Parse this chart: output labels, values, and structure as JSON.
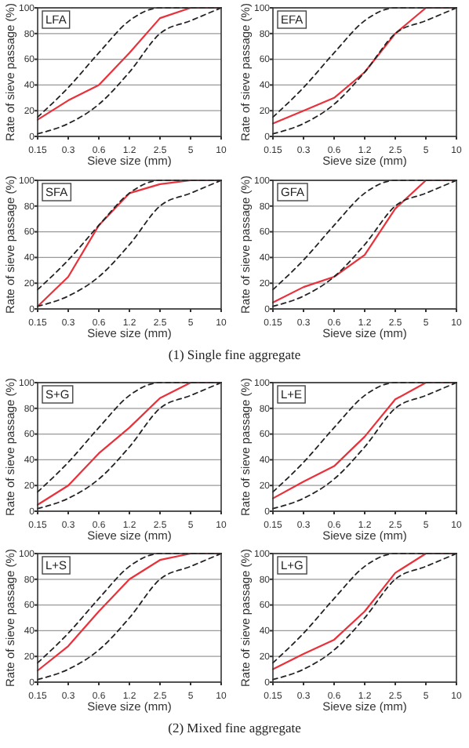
{
  "chart_data": [
    {
      "type": "line",
      "title": "LFA",
      "categories": [
        "0.15",
        "0.3",
        "0.6",
        "1.2",
        "2.5",
        "5",
        "10"
      ],
      "xlabel": "Sieve size (mm)",
      "ylabel": "Rate of sieve passage (%)",
      "ylim": [
        0,
        100
      ],
      "yticks": [
        0,
        20,
        40,
        60,
        80,
        100
      ],
      "grid": "y",
      "series": [
        {
          "color": "#e8313a",
          "line_style": "solid",
          "values": [
            13,
            28,
            40,
            65,
            92,
            100,
            100
          ]
        },
        {
          "color": "#222222",
          "line_style": "dashed",
          "values": [
            15,
            38,
            65,
            90,
            100,
            100,
            100
          ]
        },
        {
          "color": "#222222",
          "line_style": "dashed",
          "values": [
            2,
            10,
            25,
            50,
            80,
            90,
            100
          ]
        }
      ]
    },
    {
      "type": "line",
      "title": "EFA",
      "categories": [
        "0.15",
        "0.3",
        "0.6",
        "1.2",
        "2.5",
        "5",
        "10"
      ],
      "xlabel": "Sieve size (mm)",
      "ylabel": "Rate of sieve passage (%)",
      "ylim": [
        0,
        100
      ],
      "yticks": [
        0,
        20,
        40,
        60,
        80,
        100
      ],
      "grid": "y",
      "series": [
        {
          "color": "#e8313a",
          "line_style": "solid",
          "values": [
            10,
            20,
            30,
            50,
            80,
            100,
            100
          ]
        },
        {
          "color": "#222222",
          "line_style": "dashed",
          "values": [
            15,
            38,
            65,
            90,
            100,
            100,
            100
          ]
        },
        {
          "color": "#222222",
          "line_style": "dashed",
          "values": [
            2,
            10,
            25,
            50,
            80,
            90,
            100
          ]
        }
      ]
    },
    {
      "type": "line",
      "title": "SFA",
      "categories": [
        "0.15",
        "0.3",
        "0.6",
        "1.2",
        "2.5",
        "5",
        "10"
      ],
      "xlabel": "Sieve size (mm)",
      "ylabel": "Rate of sieve passage (%)",
      "ylim": [
        0,
        100
      ],
      "yticks": [
        0,
        20,
        40,
        60,
        80,
        100
      ],
      "grid": "y",
      "series": [
        {
          "color": "#e8313a",
          "line_style": "solid",
          "values": [
            2,
            25,
            65,
            90,
            97,
            100,
            100
          ]
        },
        {
          "color": "#222222",
          "line_style": "dashed",
          "values": [
            15,
            38,
            65,
            90,
            100,
            100,
            100
          ]
        },
        {
          "color": "#222222",
          "line_style": "dashed",
          "values": [
            2,
            10,
            25,
            50,
            80,
            90,
            100
          ]
        }
      ]
    },
    {
      "type": "line",
      "title": "GFA",
      "categories": [
        "0.15",
        "0.3",
        "0.6",
        "1.2",
        "2.5",
        "5",
        "10"
      ],
      "xlabel": "Sieve size (mm)",
      "ylabel": "Rate of sieve passage (%)",
      "ylim": [
        0,
        100
      ],
      "yticks": [
        0,
        20,
        40,
        60,
        80,
        100
      ],
      "grid": "y",
      "annotations": [
        "(1) Single fine aggregate"
      ],
      "series": [
        {
          "color": "#e8313a",
          "line_style": "solid",
          "values": [
            5,
            17,
            25,
            42,
            78,
            100,
            100
          ]
        },
        {
          "color": "#222222",
          "line_style": "dashed",
          "values": [
            15,
            38,
            65,
            90,
            100,
            100,
            100
          ]
        },
        {
          "color": "#222222",
          "line_style": "dashed",
          "values": [
            2,
            10,
            25,
            50,
            80,
            90,
            100
          ]
        }
      ]
    },
    {
      "type": "line",
      "title": "S+G",
      "categories": [
        "0.15",
        "0.3",
        "0.6",
        "1.2",
        "2.5",
        "5",
        "10"
      ],
      "xlabel": "Sieve size (mm)",
      "ylabel": "Rate of sieve passage (%)",
      "ylim": [
        0,
        100
      ],
      "yticks": [
        0,
        20,
        40,
        60,
        80,
        100
      ],
      "grid": "y",
      "series": [
        {
          "color": "#e8313a",
          "line_style": "solid",
          "values": [
            5,
            20,
            45,
            65,
            88,
            100,
            100
          ]
        },
        {
          "color": "#222222",
          "line_style": "dashed",
          "values": [
            15,
            38,
            65,
            90,
            100,
            100,
            100
          ]
        },
        {
          "color": "#222222",
          "line_style": "dashed",
          "values": [
            2,
            10,
            25,
            50,
            80,
            90,
            100
          ]
        }
      ]
    },
    {
      "type": "line",
      "title": "L+E",
      "categories": [
        "0.15",
        "0.3",
        "0.6",
        "1.2",
        "2.5",
        "5",
        "10"
      ],
      "xlabel": "Sieve size (mm)",
      "ylabel": "Rate of sieve passage (%)",
      "ylim": [
        0,
        100
      ],
      "yticks": [
        0,
        20,
        40,
        60,
        80,
        100
      ],
      "grid": "y",
      "series": [
        {
          "color": "#e8313a",
          "line_style": "solid",
          "values": [
            10,
            23,
            35,
            58,
            87,
            100,
            100
          ]
        },
        {
          "color": "#222222",
          "line_style": "dashed",
          "values": [
            15,
            38,
            65,
            90,
            100,
            100,
            100
          ]
        },
        {
          "color": "#222222",
          "line_style": "dashed",
          "values": [
            2,
            10,
            25,
            50,
            80,
            90,
            100
          ]
        }
      ]
    },
    {
      "type": "line",
      "title": "L+S",
      "categories": [
        "0.15",
        "0.3",
        "0.6",
        "1.2",
        "2.5",
        "5",
        "10"
      ],
      "xlabel": "Sieve size (mm)",
      "ylabel": "Rate of sieve passage (%)",
      "ylim": [
        0,
        100
      ],
      "yticks": [
        0,
        20,
        40,
        60,
        80,
        100
      ],
      "grid": "y",
      "series": [
        {
          "color": "#e8313a",
          "line_style": "solid",
          "values": [
            9,
            28,
            55,
            80,
            95,
            100,
            100
          ]
        },
        {
          "color": "#222222",
          "line_style": "dashed",
          "values": [
            15,
            38,
            65,
            90,
            100,
            100,
            100
          ]
        },
        {
          "color": "#222222",
          "line_style": "dashed",
          "values": [
            2,
            10,
            25,
            50,
            80,
            90,
            100
          ]
        }
      ]
    },
    {
      "type": "line",
      "title": "L+G",
      "categories": [
        "0.15",
        "0.3",
        "0.6",
        "1.2",
        "2.5",
        "5",
        "10"
      ],
      "xlabel": "Sieve size (mm)",
      "ylabel": "Rate of sieve passage (%)",
      "ylim": [
        0,
        100
      ],
      "yticks": [
        0,
        20,
        40,
        60,
        80,
        100
      ],
      "grid": "y",
      "annotations": [
        "(2) Mixed fine aggregate"
      ],
      "series": [
        {
          "color": "#e8313a",
          "line_style": "solid",
          "values": [
            10,
            22,
            33,
            55,
            85,
            100,
            100
          ]
        },
        {
          "color": "#222222",
          "line_style": "dashed",
          "values": [
            15,
            38,
            65,
            90,
            100,
            100,
            100
          ]
        },
        {
          "color": "#222222",
          "line_style": "dashed",
          "values": [
            2,
            10,
            25,
            50,
            80,
            90,
            100
          ]
        }
      ]
    }
  ]
}
